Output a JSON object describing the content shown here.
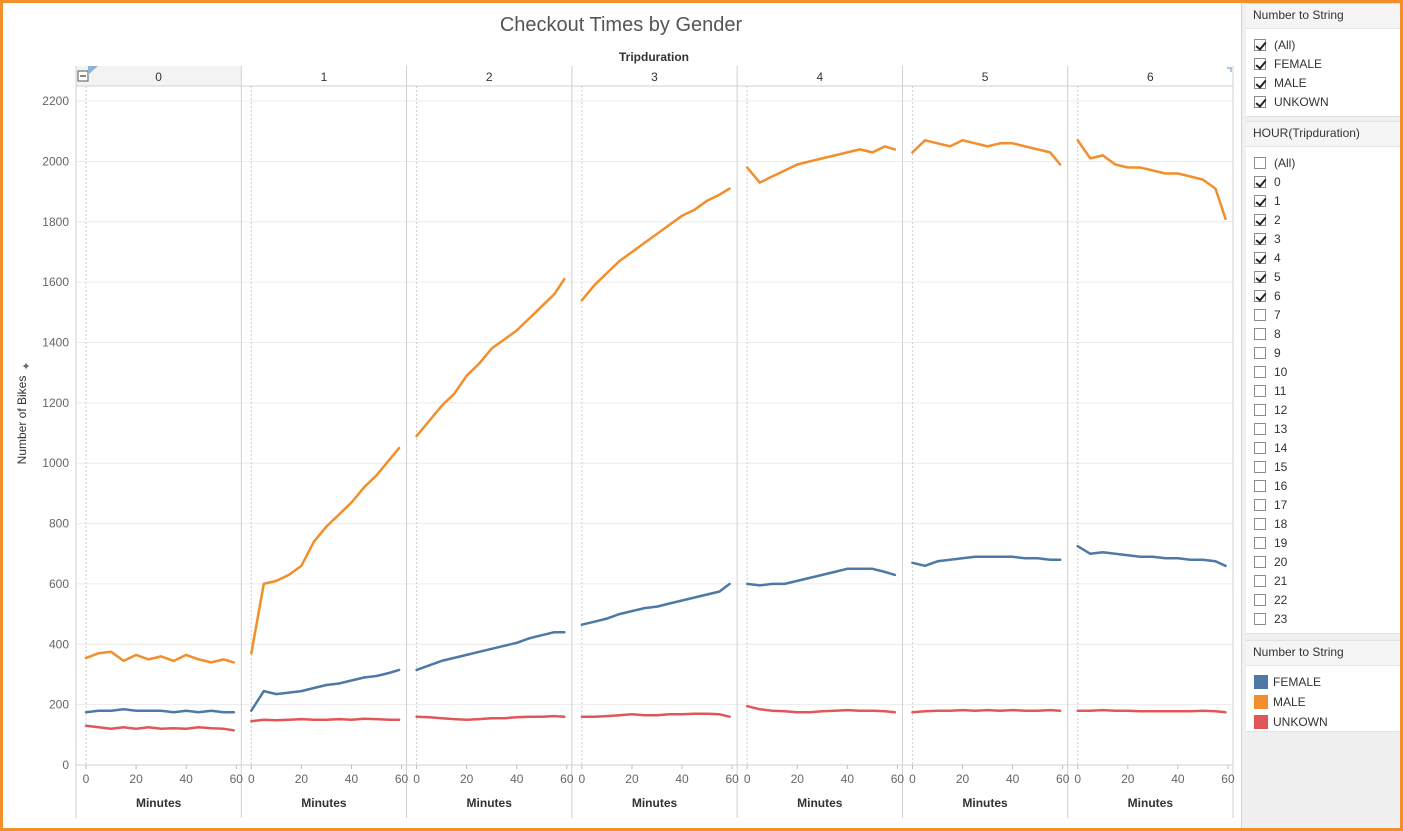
{
  "chart_data": {
    "type": "line",
    "title": "Checkout Times by Gender",
    "column_header": "Tripduration",
    "panels": [
      "0",
      "1",
      "2",
      "3",
      "4",
      "5",
      "6"
    ],
    "ylabel": "Number of Bikes",
    "xlabel": "Minutes",
    "ylim": [
      0,
      2250
    ],
    "yticks": [
      0,
      200,
      400,
      600,
      800,
      1000,
      1200,
      1400,
      1600,
      1800,
      2000,
      2200
    ],
    "xlim": [
      -4,
      62
    ],
    "xticks": [
      0,
      20,
      40,
      60
    ],
    "grid": true,
    "x": [
      0,
      5,
      10,
      15,
      20,
      25,
      30,
      35,
      40,
      45,
      50,
      55,
      59
    ],
    "series": [
      {
        "name": "MALE",
        "color": "#f28e2b",
        "values": [
          [
            355,
            370,
            375,
            345,
            365,
            350,
            360,
            345,
            365,
            350,
            340,
            350,
            340
          ],
          [
            370,
            600,
            610,
            630,
            660,
            740,
            790,
            830,
            870,
            920,
            960,
            1010,
            1050
          ],
          [
            1090,
            1140,
            1190,
            1230,
            1290,
            1330,
            1380,
            1410,
            1440,
            1480,
            1520,
            1560,
            1610
          ],
          [
            1540,
            1590,
            1630,
            1670,
            1700,
            1730,
            1760,
            1790,
            1820,
            1840,
            1870,
            1890,
            1910
          ],
          [
            1980,
            1930,
            1950,
            1970,
            1990,
            2000,
            2010,
            2020,
            2030,
            2040,
            2030,
            2050,
            2040
          ],
          [
            2030,
            2070,
            2060,
            2050,
            2070,
            2060,
            2050,
            2060,
            2060,
            2050,
            2040,
            2030,
            1990
          ],
          [
            2070,
            2010,
            2020,
            1990,
            1980,
            1980,
            1970,
            1960,
            1960,
            1950,
            1940,
            1910,
            1810
          ]
        ]
      },
      {
        "name": "FEMALE",
        "color": "#4e79a7",
        "values": [
          [
            175,
            180,
            180,
            185,
            180,
            180,
            180,
            175,
            180,
            175,
            180,
            175,
            175
          ],
          [
            180,
            245,
            235,
            240,
            245,
            255,
            265,
            270,
            280,
            290,
            295,
            305,
            315
          ],
          [
            315,
            330,
            345,
            355,
            365,
            375,
            385,
            395,
            405,
            420,
            430,
            440,
            440
          ],
          [
            465,
            475,
            485,
            500,
            510,
            520,
            525,
            535,
            545,
            555,
            565,
            575,
            600
          ],
          [
            600,
            595,
            600,
            600,
            610,
            620,
            630,
            640,
            650,
            650,
            650,
            640,
            630
          ],
          [
            670,
            660,
            675,
            680,
            685,
            690,
            690,
            690,
            690,
            685,
            685,
            680,
            680
          ],
          [
            725,
            700,
            705,
            700,
            695,
            690,
            690,
            685,
            685,
            680,
            680,
            675,
            660
          ]
        ]
      },
      {
        "name": "UNKOWN",
        "color": "#e15759",
        "values": [
          [
            130,
            125,
            120,
            125,
            120,
            125,
            120,
            122,
            120,
            125,
            122,
            120,
            115
          ],
          [
            145,
            150,
            148,
            150,
            152,
            150,
            150,
            152,
            150,
            153,
            152,
            150,
            150
          ],
          [
            160,
            158,
            155,
            152,
            150,
            152,
            155,
            155,
            158,
            160,
            160,
            162,
            160
          ],
          [
            160,
            160,
            162,
            165,
            168,
            165,
            165,
            168,
            168,
            170,
            170,
            168,
            160
          ],
          [
            195,
            185,
            180,
            178,
            175,
            175,
            178,
            180,
            182,
            180,
            180,
            178,
            175
          ],
          [
            175,
            178,
            180,
            180,
            182,
            180,
            182,
            180,
            182,
            180,
            180,
            182,
            180
          ],
          [
            180,
            180,
            182,
            180,
            180,
            178,
            178,
            178,
            178,
            178,
            180,
            178,
            175
          ]
        ]
      }
    ]
  },
  "filters": [
    {
      "title": "Number to String",
      "items": [
        {
          "label": "(All)",
          "checked": true
        },
        {
          "label": "FEMALE",
          "checked": true
        },
        {
          "label": "MALE",
          "checked": true
        },
        {
          "label": "UNKOWN",
          "checked": true
        }
      ]
    },
    {
      "title": "HOUR(Tripduration)",
      "items": [
        {
          "label": "(All)",
          "checked": false
        },
        {
          "label": "0",
          "checked": true
        },
        {
          "label": "1",
          "checked": true
        },
        {
          "label": "2",
          "checked": true
        },
        {
          "label": "3",
          "checked": true
        },
        {
          "label": "4",
          "checked": true
        },
        {
          "label": "5",
          "checked": true
        },
        {
          "label": "6",
          "checked": true
        },
        {
          "label": "7",
          "checked": false
        },
        {
          "label": "8",
          "checked": false
        },
        {
          "label": "9",
          "checked": false
        },
        {
          "label": "10",
          "checked": false
        },
        {
          "label": "11",
          "checked": false
        },
        {
          "label": "12",
          "checked": false
        },
        {
          "label": "13",
          "checked": false
        },
        {
          "label": "14",
          "checked": false
        },
        {
          "label": "15",
          "checked": false
        },
        {
          "label": "16",
          "checked": false
        },
        {
          "label": "17",
          "checked": false
        },
        {
          "label": "18",
          "checked": false
        },
        {
          "label": "19",
          "checked": false
        },
        {
          "label": "20",
          "checked": false
        },
        {
          "label": "21",
          "checked": false
        },
        {
          "label": "22",
          "checked": false
        },
        {
          "label": "23",
          "checked": false
        }
      ]
    }
  ],
  "legend": {
    "title": "Number to String",
    "items": [
      {
        "label": "FEMALE",
        "color": "#4e79a7"
      },
      {
        "label": "MALE",
        "color": "#f28e2b"
      },
      {
        "label": "UNKOWN",
        "color": "#e15759"
      }
    ]
  }
}
